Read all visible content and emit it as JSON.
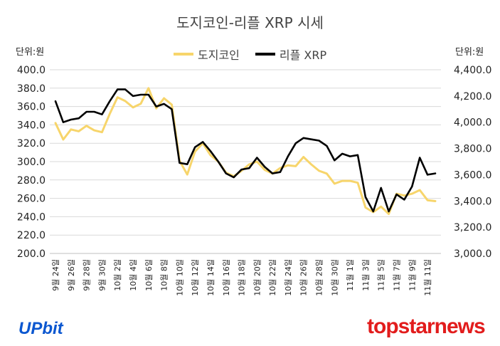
{
  "chart_data": {
    "type": "line",
    "title": "도지코인-리플 XRP 시세",
    "left_unit": "단위:원",
    "right_unit": "단위:원",
    "categories": [
      "9월 24일",
      "9월 25일",
      "9월 26일",
      "9월 27일",
      "9월 28일",
      "9월 29일",
      "9월 30일",
      "10월 1일",
      "10월 2일",
      "10월 3일",
      "10월 4일",
      "10월 5일",
      "10월 6일",
      "10월 7일",
      "10월 8일",
      "10월 9일",
      "10월 10일",
      "10월 11일",
      "10월 12일",
      "10월 13일",
      "10월 14일",
      "10월 15일",
      "10월 16일",
      "10월 17일",
      "10월 18일",
      "10월 19일",
      "10월 20일",
      "10월 21일",
      "10월 22일",
      "10월 23일",
      "10월 24일",
      "10월 25일",
      "10월 26일",
      "10월 27일",
      "10월 28일",
      "10월 29일",
      "10월 30일",
      "10월 31일",
      "11월 1일",
      "11월 2일",
      "11월 3일",
      "11월 4일",
      "11월 5일",
      "11월 6일",
      "11월 7일",
      "11월 8일",
      "11월 9일",
      "11월 10일",
      "11월 11일",
      "11월 12일"
    ],
    "tick_labels_shown": [
      "9월 24일",
      "9월 26일",
      "9월 28일",
      "9월 30일",
      "10월 2일",
      "10월 4일",
      "10월 6일",
      "10월 8일",
      "10월 10일",
      "10월 12일",
      "10월 14일",
      "10월 16일",
      "10월 18일",
      "10월 20일",
      "10월 22일",
      "10월 24일",
      "10월 26일",
      "10월 28일",
      "10월 30일",
      "11월 1일",
      "11월 3일",
      "11월 5일",
      "11월 7일",
      "11월 9일",
      "11월 11일"
    ],
    "series": [
      {
        "name": "도지코인",
        "axis": "left",
        "color": "#f7d56b",
        "values": [
          342,
          324,
          335,
          333,
          339,
          334,
          332,
          352,
          370,
          366,
          359,
          363,
          380,
          358,
          369,
          362,
          301,
          286,
          311,
          320,
          307,
          300,
          288,
          284,
          290,
          297,
          300,
          291,
          287,
          293,
          296,
          295,
          305,
          297,
          290,
          287,
          276,
          279,
          279,
          277,
          250,
          245,
          251,
          243,
          265,
          263,
          265,
          269,
          258,
          257
        ]
      },
      {
        "name": "리플 XRP",
        "axis": "right",
        "color": "#000000",
        "values": [
          4160,
          4000,
          4020,
          4030,
          4080,
          4080,
          4060,
          4160,
          4250,
          4250,
          4200,
          4210,
          4210,
          4120,
          4140,
          4100,
          3690,
          3680,
          3810,
          3850,
          3780,
          3700,
          3610,
          3580,
          3640,
          3650,
          3730,
          3660,
          3610,
          3620,
          3740,
          3840,
          3880,
          3870,
          3860,
          3820,
          3710,
          3760,
          3740,
          3750,
          3430,
          3320,
          3500,
          3320,
          3450,
          3410,
          3510,
          3730,
          3600,
          3610
        ]
      }
    ],
    "left_axis": {
      "min": 200,
      "max": 400,
      "step": 20,
      "tick_labels": [
        "200.0",
        "220.0",
        "240.0",
        "260.0",
        "280.0",
        "300.0",
        "320.0",
        "340.0",
        "360.0",
        "380.0",
        "400.0"
      ]
    },
    "right_axis": {
      "min": 3000,
      "max": 4400,
      "step": 200,
      "tick_labels": [
        "3,000.0",
        "3,200.0",
        "3,400.0",
        "3,600.0",
        "3,800.0",
        "4,000.0",
        "4,200.0",
        "4,400.0"
      ]
    },
    "legend_position": "top-center",
    "grid": true
  },
  "legend": {
    "doge": "도지코인",
    "xrp": "리플 XRP"
  },
  "logos": {
    "upbit": "UPbit",
    "topstar": "topstarnews"
  }
}
